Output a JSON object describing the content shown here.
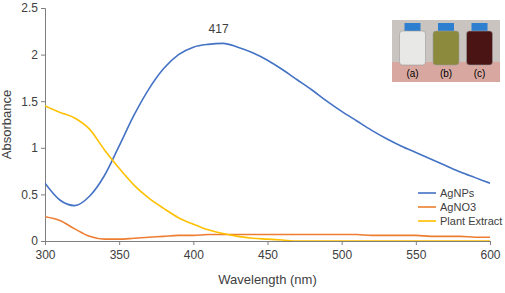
{
  "chart_data": {
    "type": "line",
    "x_label": "Wavelength (nm)",
    "y_label": "Absorbance",
    "x": [
      300,
      310,
      320,
      330,
      340,
      350,
      360,
      370,
      380,
      390,
      400,
      410,
      420,
      430,
      440,
      450,
      460,
      470,
      480,
      490,
      500,
      510,
      520,
      530,
      540,
      550,
      560,
      570,
      580,
      590,
      600
    ],
    "series": [
      {
        "name": "AgNPs",
        "color": "#4472c4",
        "values": [
          0.62,
          0.44,
          0.38,
          0.48,
          0.7,
          1.02,
          1.35,
          1.63,
          1.85,
          2.0,
          2.08,
          2.11,
          2.12,
          2.08,
          2.02,
          1.94,
          1.84,
          1.73,
          1.62,
          1.5,
          1.39,
          1.29,
          1.19,
          1.1,
          1.02,
          0.95,
          0.88,
          0.81,
          0.74,
          0.68,
          0.62
        ]
      },
      {
        "name": "AgNO3",
        "color": "#ed7d31",
        "values": [
          0.26,
          0.22,
          0.13,
          0.05,
          0.02,
          0.02,
          0.03,
          0.04,
          0.05,
          0.06,
          0.06,
          0.07,
          0.07,
          0.07,
          0.07,
          0.07,
          0.07,
          0.07,
          0.07,
          0.07,
          0.07,
          0.07,
          0.06,
          0.06,
          0.06,
          0.06,
          0.05,
          0.05,
          0.05,
          0.04,
          0.04
        ]
      },
      {
        "name": "Plant Extract",
        "color": "#ffc000",
        "values": [
          1.45,
          1.38,
          1.32,
          1.2,
          0.98,
          0.78,
          0.6,
          0.46,
          0.35,
          0.25,
          0.18,
          0.12,
          0.08,
          0.05,
          0.03,
          0.02,
          0.01,
          0.0,
          0.0,
          0.0,
          0.0,
          0.0,
          0.0,
          0.0,
          0.0,
          0.0,
          0.0,
          0.0,
          0.0,
          0.0,
          0.0
        ]
      }
    ],
    "xlim": [
      300,
      600
    ],
    "xticks": [
      300,
      350,
      400,
      450,
      500,
      550,
      600
    ],
    "ylim": [
      0,
      2.5
    ],
    "yticks": [
      0,
      0.5,
      1,
      1.5,
      2,
      2.5
    ],
    "grid": false,
    "legend": "lower right",
    "annotations": [
      {
        "text": "417",
        "x": 417,
        "y": 2.12
      }
    ],
    "inset_labels": [
      "(a)",
      "(b)",
      "(c)"
    ]
  }
}
